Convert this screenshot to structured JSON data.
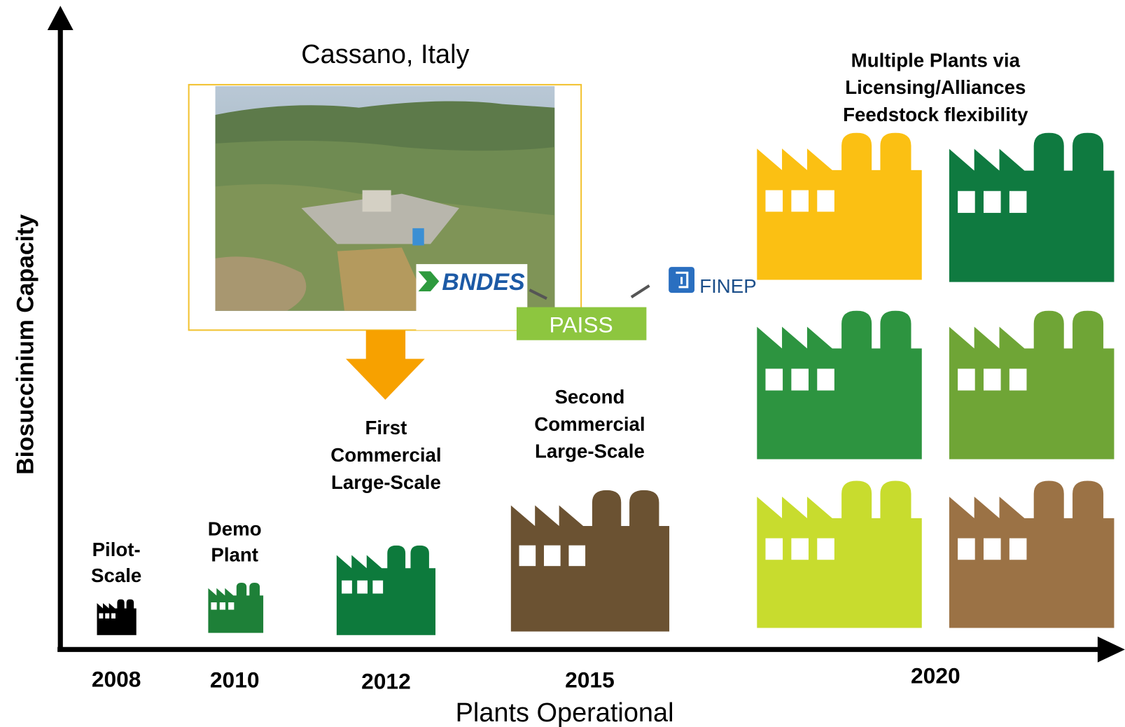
{
  "y_axis_label": "Biosuccinium Capacity",
  "x_axis_label": "Plants Operational",
  "photo_caption": "Cassano, Italy",
  "funders": {
    "bndes": "BNDES",
    "program": "PAISS",
    "finep": "FINEP"
  },
  "stages": [
    {
      "year": "2008",
      "label": [
        "Pilot-",
        "Scale"
      ]
    },
    {
      "year": "2010",
      "label": [
        "Demo",
        "Plant"
      ]
    },
    {
      "year": "2012",
      "label": [
        "First",
        "Commercial",
        "Large-Scale"
      ]
    },
    {
      "year": "2015",
      "label": [
        "Second",
        "Commercial",
        "Large-Scale"
      ]
    },
    {
      "year": "2020",
      "label": [
        "Multiple Plants via",
        "Licensing/Alliances",
        "Feedstock flexibility"
      ]
    }
  ]
}
